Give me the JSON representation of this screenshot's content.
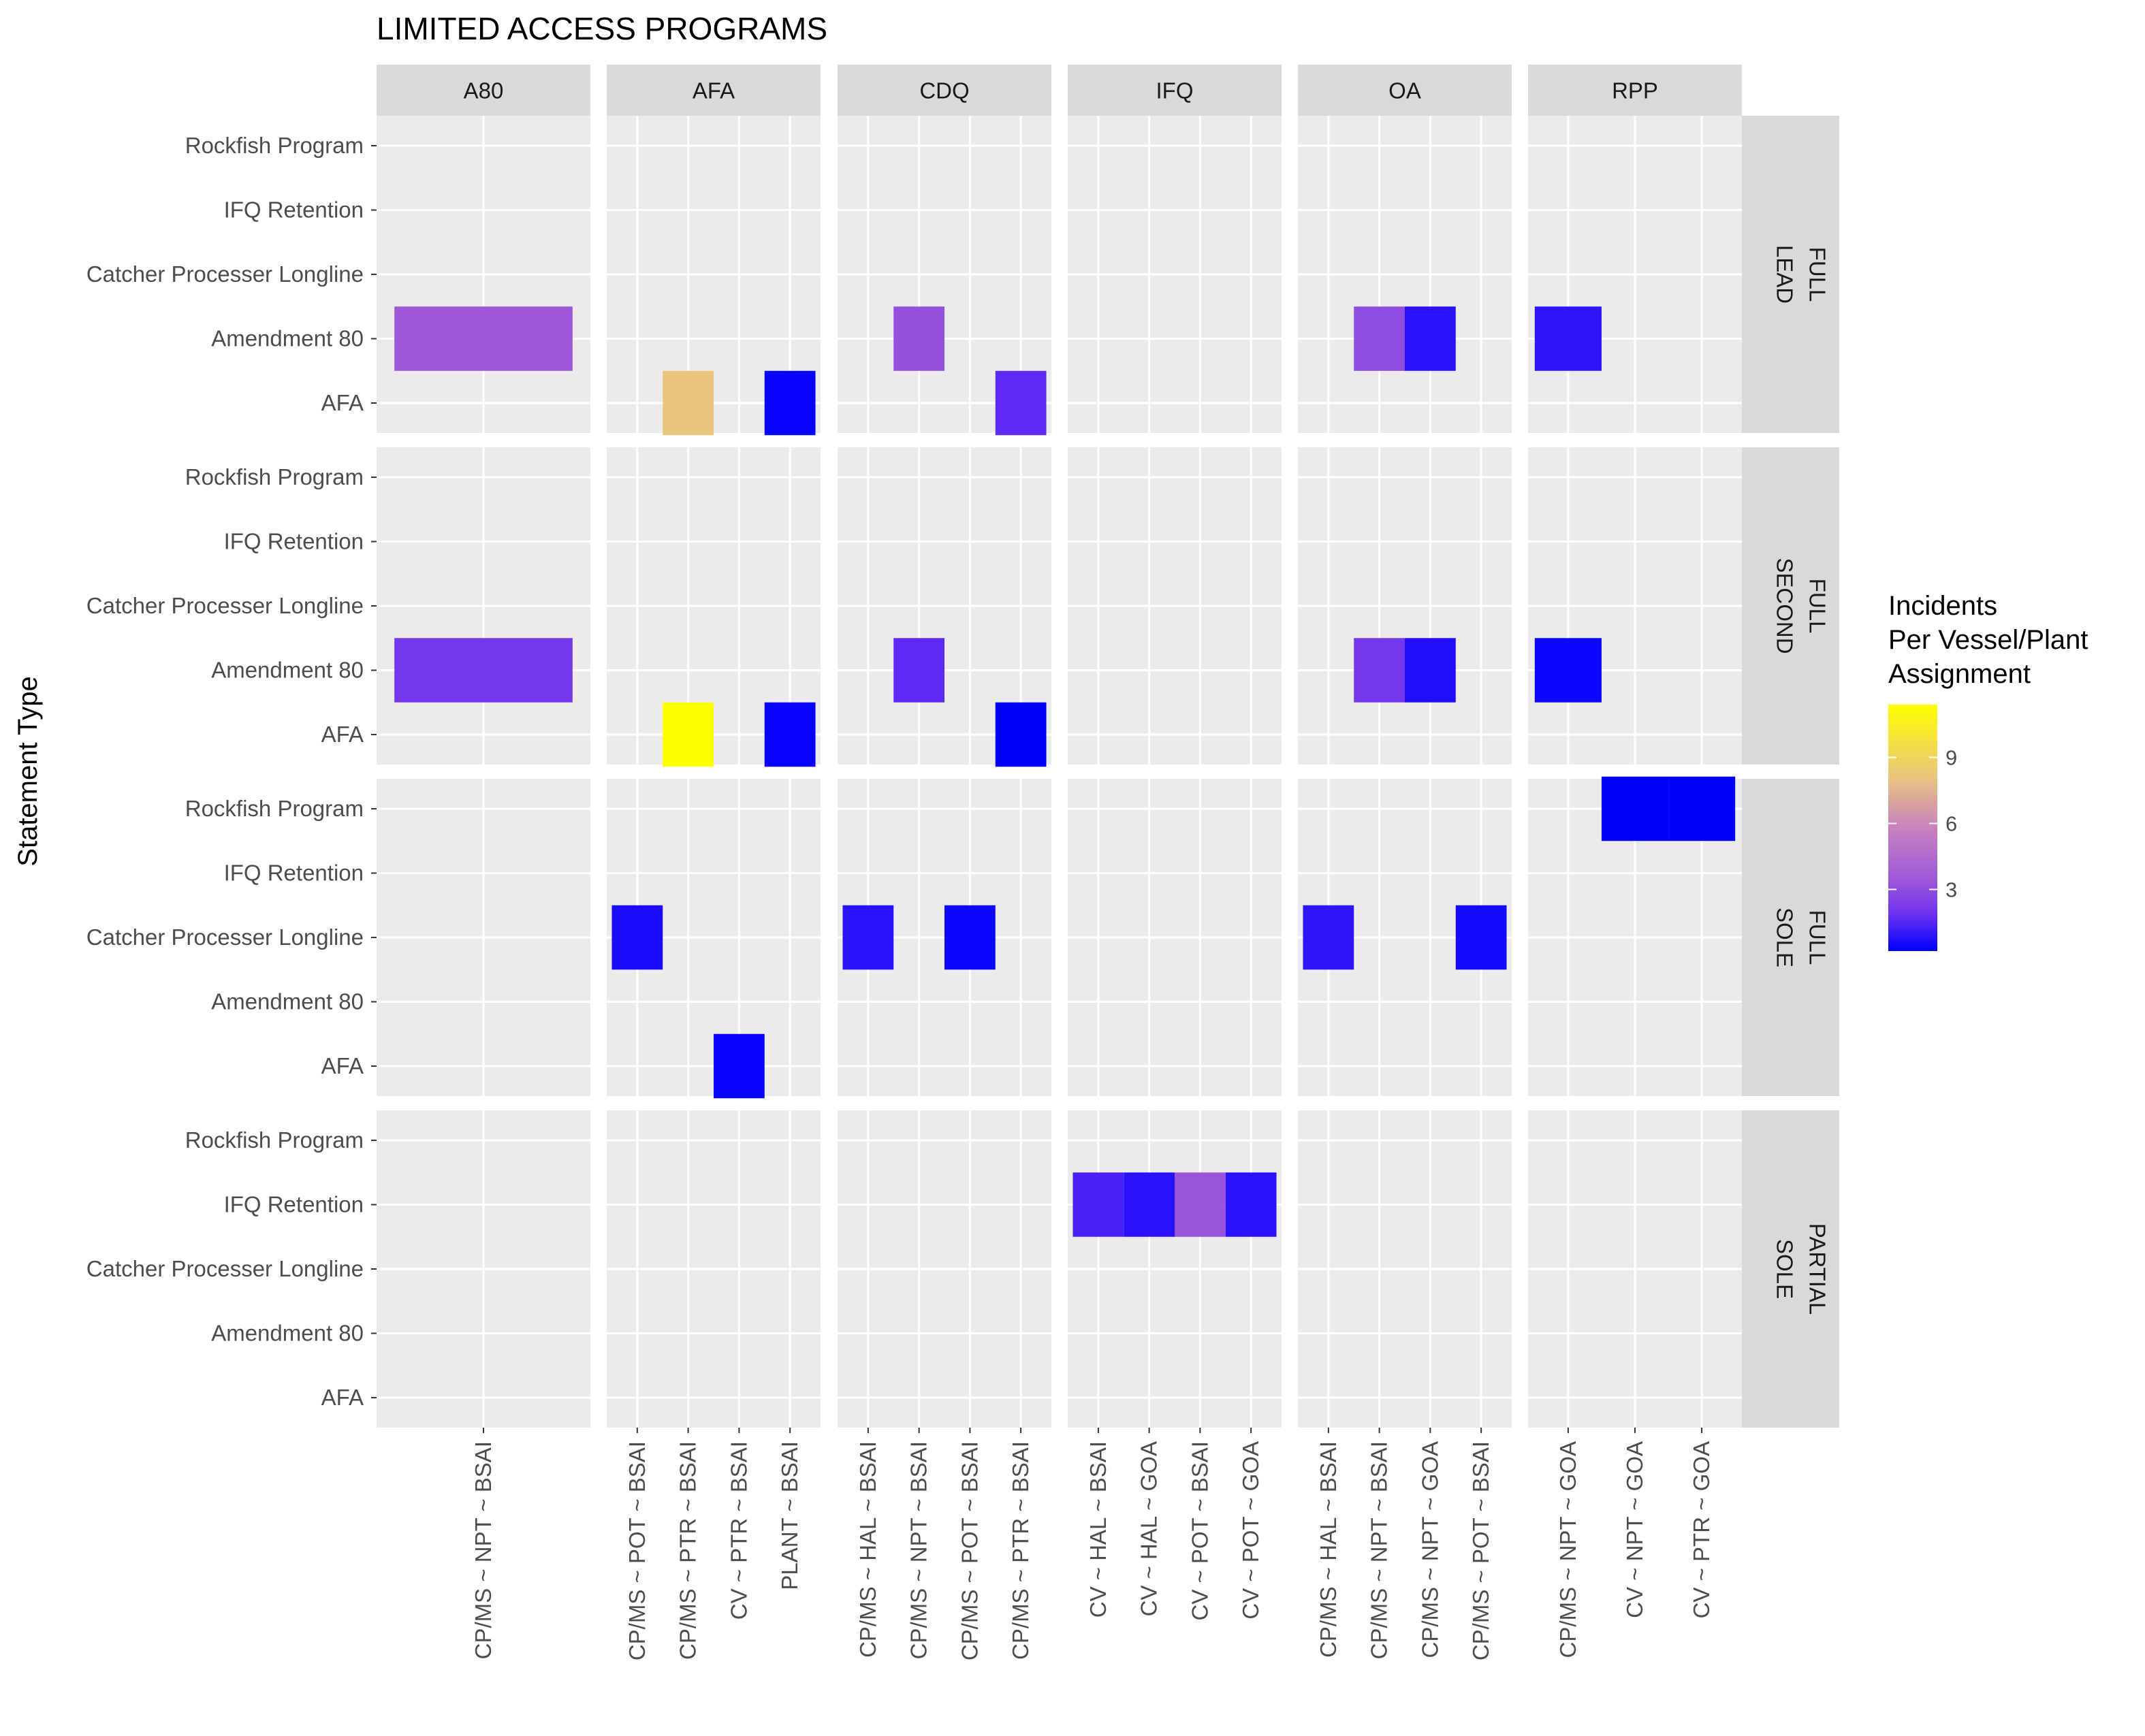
{
  "chart_data": {
    "type": "heatmap",
    "title": "LIMITED ACCESS PROGRAMS",
    "ylabel": "Statement Type",
    "xlabel": "",
    "col_facets": [
      "A80",
      "AFA",
      "CDQ",
      "IFQ",
      "OA",
      "RPP"
    ],
    "row_facets": [
      {
        "id": "FULL_LEAD",
        "lines": [
          "FULL",
          "LEAD"
        ]
      },
      {
        "id": "FULL_SECOND",
        "lines": [
          "FULL",
          "SECOND"
        ]
      },
      {
        "id": "FULL_SOLE",
        "lines": [
          "FULL",
          "SOLE"
        ]
      },
      {
        "id": "PARTIAL_SOLE",
        "lines": [
          "PARTIAL",
          "SOLE"
        ]
      }
    ],
    "y_categories": [
      "AFA",
      "Amendment 80",
      "Catcher Processer Longline",
      "IFQ Retention",
      "Rockfish Program"
    ],
    "x_categories": {
      "A80": [
        "CP/MS ~ NPT ~ BSAI"
      ],
      "AFA": [
        "CP/MS ~ POT ~ BSAI",
        "CP/MS ~ PTR ~ BSAI",
        "CV ~ PTR ~ BSAI",
        "PLANT ~ BSAI"
      ],
      "CDQ": [
        "CP/MS ~ HAL ~ BSAI",
        "CP/MS ~ NPT ~ BSAI",
        "CP/MS ~ POT ~ BSAI",
        "CP/MS ~ PTR ~ BSAI"
      ],
      "IFQ": [
        "CV ~ HAL ~ BSAI",
        "CV ~ HAL ~ GOA",
        "CV ~ POT ~ BSAI",
        "CV ~ POT ~ GOA"
      ],
      "OA": [
        "CP/MS ~ HAL ~ BSAI",
        "CP/MS ~ NPT ~ BSAI",
        "CP/MS ~ NPT ~ GOA",
        "CP/MS ~ POT ~ BSAI"
      ],
      "RPP": [
        "CP/MS ~ NPT ~ GOA",
        "CV ~ NPT ~ GOA",
        "CV ~ PTR ~ GOA"
      ]
    },
    "cells": [
      {
        "row": "FULL_LEAD",
        "col": "A80",
        "x": "CP/MS ~ NPT ~ BSAI",
        "y": "Amendment 80",
        "value": 3.5
      },
      {
        "row": "FULL_LEAD",
        "col": "AFA",
        "x": "CP/MS ~ PTR ~ BSAI",
        "y": "AFA",
        "value": 8.2
      },
      {
        "row": "FULL_LEAD",
        "col": "AFA",
        "x": "PLANT ~ BSAI",
        "y": "AFA",
        "value": 0.3
      },
      {
        "row": "FULL_LEAD",
        "col": "CDQ",
        "x": "CP/MS ~ NPT ~ BSAI",
        "y": "Amendment 80",
        "value": 3.2
      },
      {
        "row": "FULL_LEAD",
        "col": "CDQ",
        "x": "CP/MS ~ PTR ~ BSAI",
        "y": "AFA",
        "value": 1.6
      },
      {
        "row": "FULL_LEAD",
        "col": "OA",
        "x": "CP/MS ~ NPT ~ BSAI",
        "y": "Amendment 80",
        "value": 3.0
      },
      {
        "row": "FULL_LEAD",
        "col": "OA",
        "x": "CP/MS ~ NPT ~ GOA",
        "y": "Amendment 80",
        "value": 0.8
      },
      {
        "row": "FULL_LEAD",
        "col": "RPP",
        "x": "CP/MS ~ NPT ~ GOA",
        "y": "Amendment 80",
        "value": 0.9
      },
      {
        "row": "FULL_SECOND",
        "col": "A80",
        "x": "CP/MS ~ NPT ~ BSAI",
        "y": "Amendment 80",
        "value": 2.1
      },
      {
        "row": "FULL_SECOND",
        "col": "AFA",
        "x": "CP/MS ~ PTR ~ BSAI",
        "y": "AFA",
        "value": 11.4
      },
      {
        "row": "FULL_SECOND",
        "col": "AFA",
        "x": "PLANT ~ BSAI",
        "y": "AFA",
        "value": 0.3
      },
      {
        "row": "FULL_SECOND",
        "col": "CDQ",
        "x": "CP/MS ~ NPT ~ BSAI",
        "y": "Amendment 80",
        "value": 1.6
      },
      {
        "row": "FULL_SECOND",
        "col": "CDQ",
        "x": "CP/MS ~ PTR ~ BSAI",
        "y": "AFA",
        "value": 0.2
      },
      {
        "row": "FULL_SECOND",
        "col": "OA",
        "x": "CP/MS ~ NPT ~ BSAI",
        "y": "Amendment 80",
        "value": 2.1
      },
      {
        "row": "FULL_SECOND",
        "col": "OA",
        "x": "CP/MS ~ NPT ~ GOA",
        "y": "Amendment 80",
        "value": 0.7
      },
      {
        "row": "FULL_SECOND",
        "col": "RPP",
        "x": "CP/MS ~ NPT ~ GOA",
        "y": "Amendment 80",
        "value": 0.4
      },
      {
        "row": "FULL_SOLE",
        "col": "AFA",
        "x": "CP/MS ~ POT ~ BSAI",
        "y": "Catcher Processer Longline",
        "value": 0.6
      },
      {
        "row": "FULL_SOLE",
        "col": "AFA",
        "x": "CV ~ PTR ~ BSAI",
        "y": "AFA",
        "value": 0.3
      },
      {
        "row": "FULL_SOLE",
        "col": "CDQ",
        "x": "CP/MS ~ HAL ~ BSAI",
        "y": "Catcher Processer Longline",
        "value": 0.8
      },
      {
        "row": "FULL_SOLE",
        "col": "CDQ",
        "x": "CP/MS ~ POT ~ BSAI",
        "y": "Catcher Processer Longline",
        "value": 0.4
      },
      {
        "row": "FULL_SOLE",
        "col": "OA",
        "x": "CP/MS ~ HAL ~ BSAI",
        "y": "Catcher Processer Longline",
        "value": 0.9
      },
      {
        "row": "FULL_SOLE",
        "col": "OA",
        "x": "CP/MS ~ POT ~ BSAI",
        "y": "Catcher Processer Longline",
        "value": 0.5
      },
      {
        "row": "FULL_SOLE",
        "col": "RPP",
        "x": "CV ~ NPT ~ GOA",
        "y": "Rockfish Program",
        "value": 0.2
      },
      {
        "row": "FULL_SOLE",
        "col": "RPP",
        "x": "CV ~ PTR ~ GOA",
        "y": "Rockfish Program",
        "value": 0.2
      },
      {
        "row": "PARTIAL_SOLE",
        "col": "IFQ",
        "x": "CV ~ HAL ~ BSAI",
        "y": "IFQ Retention",
        "value": 1.3
      },
      {
        "row": "PARTIAL_SOLE",
        "col": "IFQ",
        "x": "CV ~ HAL ~ GOA",
        "y": "IFQ Retention",
        "value": 0.8
      },
      {
        "row": "PARTIAL_SOLE",
        "col": "IFQ",
        "x": "CV ~ POT ~ BSAI",
        "y": "IFQ Retention",
        "value": 3.3
      },
      {
        "row": "PARTIAL_SOLE",
        "col": "IFQ",
        "x": "CV ~ POT ~ GOA",
        "y": "IFQ Retention",
        "value": 0.8
      }
    ],
    "legend": {
      "title_lines": [
        "Incidents",
        "Per Vessel/Plant",
        "Assignment"
      ],
      "ticks": [
        3,
        6,
        9
      ],
      "range": [
        0.2,
        11.4
      ],
      "colors": {
        "low": "#0000FF",
        "high": "#FFFF00"
      }
    },
    "grid": true
  }
}
